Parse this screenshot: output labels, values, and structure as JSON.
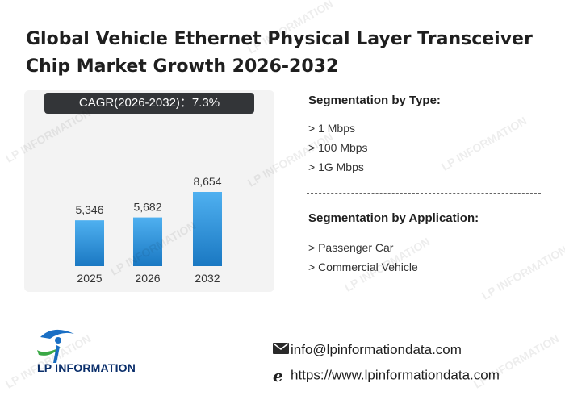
{
  "title_line1": "Global Vehicle Ethernet Physical Layer Transceiver",
  "title_line2": "Chip Market Growth 2026-2032",
  "cagr_text": "CAGR(2026-2032)：7.3%",
  "chart_data": {
    "type": "bar",
    "categories": [
      "2025",
      "2026",
      "2032"
    ],
    "values": [
      5346,
      5682,
      8654
    ],
    "value_labels": [
      "5,346",
      "5,682",
      "8,654"
    ],
    "bar_color_top": "#4fb0f0",
    "bar_color_bottom": "#1a78c2"
  },
  "segment_type": {
    "heading": "Segmentation by Type:",
    "items": [
      "> 1 Mbps",
      "> 100 Mbps",
      "> 1G Mbps"
    ]
  },
  "segment_application": {
    "heading": "Segmentation by Application:",
    "items": [
      "> Passenger Car",
      "> Commercial Vehicle"
    ]
  },
  "logo_text": "LP INFORMATION",
  "contact": {
    "email": "info@lpinformationdata.com",
    "website": "https://www.lpinformationdata.com"
  },
  "watermark_text": "LP INFORMATION"
}
